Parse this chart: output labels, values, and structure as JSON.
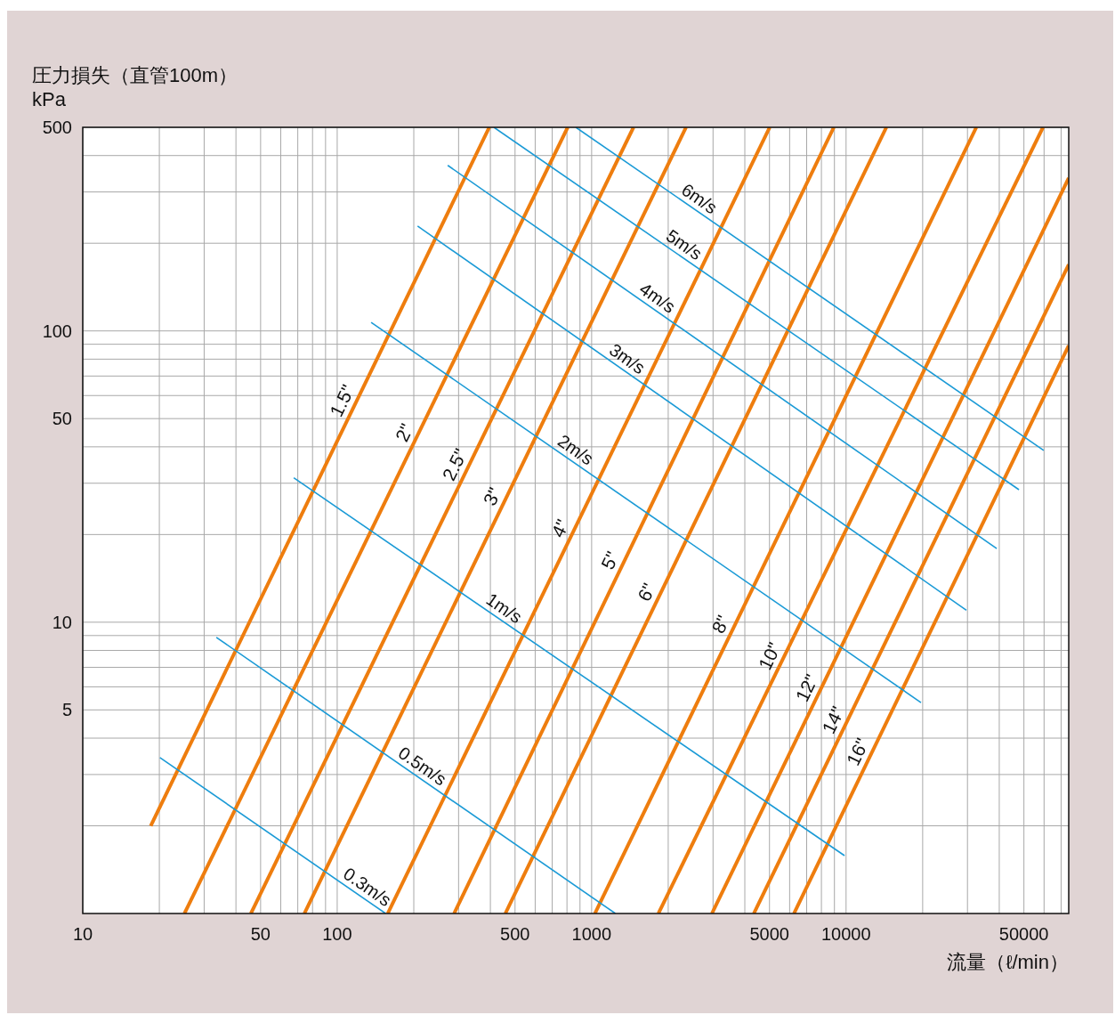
{
  "chart_data": {
    "type": "line",
    "ylabel": "圧力損失（直管100m）\nkPa",
    "xlabel": "流量（ℓ/min）",
    "log": "xy",
    "grid": true,
    "line_style": "solid",
    "xlim": [
      10,
      75000
    ],
    "ylim": [
      1,
      500
    ],
    "xticks": [
      10,
      {
        "value": 20,
        "label": null
      },
      {
        "value": 30,
        "label": null
      },
      {
        "value": 40,
        "label": null
      },
      50,
      {
        "value": 60,
        "label": null
      },
      {
        "value": 70,
        "label": null
      },
      {
        "value": 80,
        "label": null
      },
      {
        "value": 90,
        "label": null
      },
      100,
      {
        "value": 200,
        "label": null
      },
      {
        "value": 300,
        "label": null
      },
      {
        "value": 400,
        "label": null
      },
      500,
      {
        "value": 600,
        "label": null
      },
      {
        "value": 700,
        "label": null
      },
      {
        "value": 800,
        "label": null
      },
      {
        "value": 900,
        "label": null
      },
      1000,
      {
        "value": 2000,
        "label": null
      },
      {
        "value": 3000,
        "label": null
      },
      {
        "value": 4000,
        "label": null
      },
      5000,
      {
        "value": 6000,
        "label": null
      },
      {
        "value": 7000,
        "label": null
      },
      {
        "value": 8000,
        "label": null
      },
      {
        "value": 9000,
        "label": null
      },
      10000,
      {
        "value": 20000,
        "label": null
      },
      {
        "value": 30000,
        "label": null
      },
      {
        "value": 40000,
        "label": null
      },
      50000,
      {
        "value": 60000,
        "label": null
      },
      {
        "value": 70000,
        "label": null
      }
    ],
    "yticks": [
      {
        "value": 2,
        "label": null
      },
      {
        "value": 3,
        "label": null
      },
      {
        "value": 4,
        "label": null
      },
      5,
      {
        "value": 6,
        "label": null
      },
      {
        "value": 7,
        "label": null
      },
      {
        "value": 8,
        "label": null
      },
      {
        "value": 9,
        "label": null
      },
      10,
      {
        "value": 20,
        "label": null
      },
      {
        "value": 30,
        "label": null
      },
      {
        "value": 40,
        "label": null
      },
      50,
      {
        "value": 60,
        "label": null
      },
      {
        "value": 70,
        "label": null
      },
      {
        "value": 80,
        "label": null
      },
      {
        "value": 90,
        "label": null
      },
      100,
      {
        "value": 200,
        "label": null
      },
      {
        "value": 300,
        "label": null
      },
      {
        "value": 400,
        "label": null
      },
      500
    ],
    "series": [
      {
        "name": "1.5\"",
        "color": "#ee7d0e",
        "x": [
          18.5,
          396
        ],
        "values": [
          2.0,
          500
        ]
      },
      {
        "name": "2\"",
        "color": "#ee7d0e",
        "x": [
          25.1,
          805
        ],
        "values": [
          1,
          500
        ]
      },
      {
        "name": "2.5\"",
        "color": "#ee7d0e",
        "x": [
          45.8,
          1460
        ],
        "values": [
          1,
          500
        ]
      },
      {
        "name": "3\"",
        "color": "#ee7d0e",
        "x": [
          74.3,
          2350
        ],
        "values": [
          1,
          500
        ]
      },
      {
        "name": "4\"",
        "color": "#ee7d0e",
        "x": [
          158,
          5010
        ],
        "values": [
          1,
          500
        ]
      },
      {
        "name": "5\"",
        "color": "#ee7d0e",
        "x": [
          288,
          8950
        ],
        "values": [
          1,
          500
        ]
      },
      {
        "name": "6\"",
        "color": "#ee7d0e",
        "x": [
          458,
          14400
        ],
        "values": [
          1,
          500
        ]
      },
      {
        "name": "8\"",
        "color": "#ee7d0e",
        "x": [
          1030,
          32500
        ],
        "values": [
          1,
          500
        ]
      },
      {
        "name": "10\"",
        "color": "#ee7d0e",
        "x": [
          1830,
          59400
        ],
        "values": [
          1,
          500
        ]
      },
      {
        "name": "12\"",
        "color": "#ee7d0e",
        "x": [
          2970,
          75000
        ],
        "values": [
          1,
          335
        ]
      },
      {
        "name": "14\"",
        "color": "#ee7d0e",
        "x": [
          4340,
          75000
        ],
        "values": [
          1,
          169
        ]
      },
      {
        "name": "16\"",
        "color": "#ee7d0e",
        "x": [
          6240,
          75000
        ],
        "values": [
          1,
          89
        ]
      },
      {
        "name": "6m/s",
        "color": "#1a9ad6",
        "x": [
          867,
          59800
        ],
        "values": [
          500,
          38.9
        ]
      },
      {
        "name": "5m/s",
        "color": "#1a9ad6",
        "x": [
          413,
          47800
        ],
        "values": [
          500,
          28.5
        ]
      },
      {
        "name": "4m/s",
        "color": "#1a9ad6",
        "x": [
          272,
          39100
        ],
        "values": [
          370,
          17.9
        ]
      },
      {
        "name": "3m/s",
        "color": "#1a9ad6",
        "x": [
          207,
          29700
        ],
        "values": [
          229,
          11.0
        ]
      },
      {
        "name": "2m/s",
        "color": "#1a9ad6",
        "x": [
          136,
          19700
        ],
        "values": [
          107,
          5.3
        ]
      },
      {
        "name": "1m/s",
        "color": "#1a9ad6",
        "x": [
          67.5,
          9860
        ],
        "values": [
          31.3,
          1.58
        ]
      },
      {
        "name": "0.5m/s",
        "color": "#1a9ad6",
        "x": [
          33.5,
          1240
        ],
        "values": [
          8.87,
          1
        ]
      },
      {
        "name": "0.3m/s",
        "color": "#1a9ad6",
        "x": [
          20.1,
          155
        ],
        "values": [
          3.43,
          1
        ]
      }
    ]
  }
}
